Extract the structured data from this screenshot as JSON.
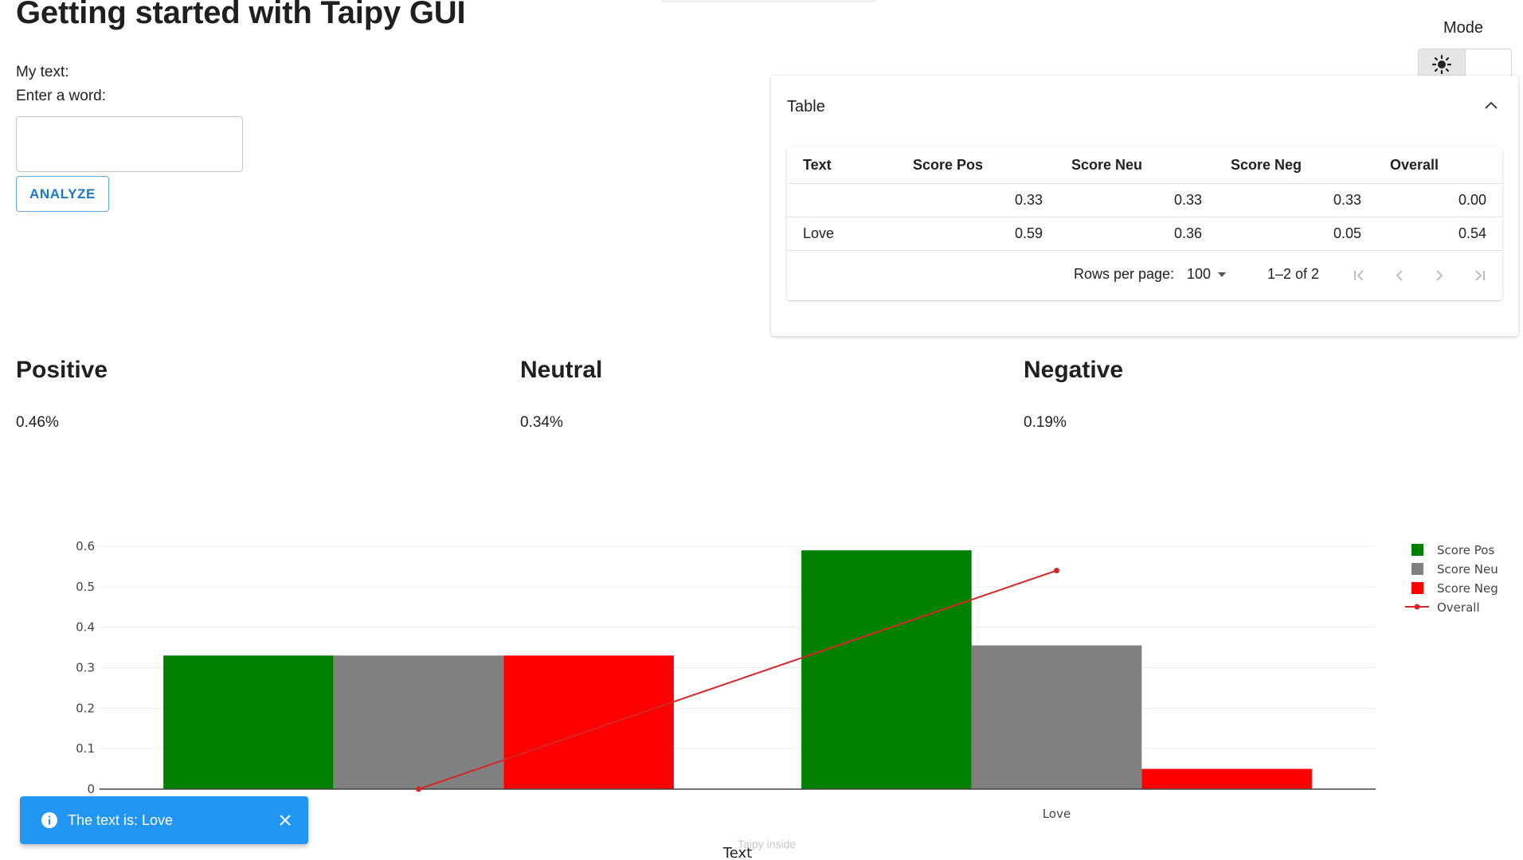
{
  "header": {
    "title": "Getting started with Taipy GUI"
  },
  "form": {
    "my_text_label": "My text:",
    "enter_word_label": "Enter a word:",
    "input_value": "",
    "analyze_label": "ANALYZE"
  },
  "mode": {
    "label": "Mode",
    "selected": "light",
    "icons": [
      "sun-icon",
      "moon-icon"
    ]
  },
  "table": {
    "title": "Table",
    "columns": [
      "Text",
      "Score Pos",
      "Score Neu",
      "Score Neg",
      "Overall"
    ],
    "rows": [
      [
        "",
        "0.33",
        "0.33",
        "0.33",
        "0.00"
      ],
      [
        "Love",
        "0.59",
        "0.36",
        "0.05",
        "0.54"
      ]
    ],
    "rows_per_page_label": "Rows per page:",
    "rows_per_page": "100",
    "page_range": "1–2 of 2"
  },
  "metrics": [
    {
      "title": "Positive",
      "value": "0.46%"
    },
    {
      "title": "Neutral",
      "value": "0.34%"
    },
    {
      "title": "Negative",
      "value": "0.19%"
    }
  ],
  "chart_data": {
    "type": "bar",
    "categories": [
      "",
      "Love"
    ],
    "series": [
      {
        "name": "Score Pos",
        "kind": "bar",
        "color": "#008000",
        "values": [
          0.33,
          0.59
        ]
      },
      {
        "name": "Score Neu",
        "kind": "bar",
        "color": "#808080",
        "values": [
          0.33,
          0.355
        ]
      },
      {
        "name": "Score Neg",
        "kind": "bar",
        "color": "#ff0000",
        "values": [
          0.33,
          0.05
        ]
      },
      {
        "name": "Overall",
        "kind": "line",
        "color": "#d62728",
        "values": [
          0.0,
          0.54
        ]
      }
    ],
    "xlabel": "Text",
    "ylabel": "",
    "ylim": [
      0,
      0.6
    ],
    "yticks": [
      "0",
      "0.1",
      "0.2",
      "0.3",
      "0.4",
      "0.5",
      "0.6"
    ],
    "grid": true,
    "legend_position": "top-right"
  },
  "toast": {
    "message": "The text is: Love",
    "type": "info"
  },
  "footer": {
    "watermark": "Taipy inside"
  }
}
